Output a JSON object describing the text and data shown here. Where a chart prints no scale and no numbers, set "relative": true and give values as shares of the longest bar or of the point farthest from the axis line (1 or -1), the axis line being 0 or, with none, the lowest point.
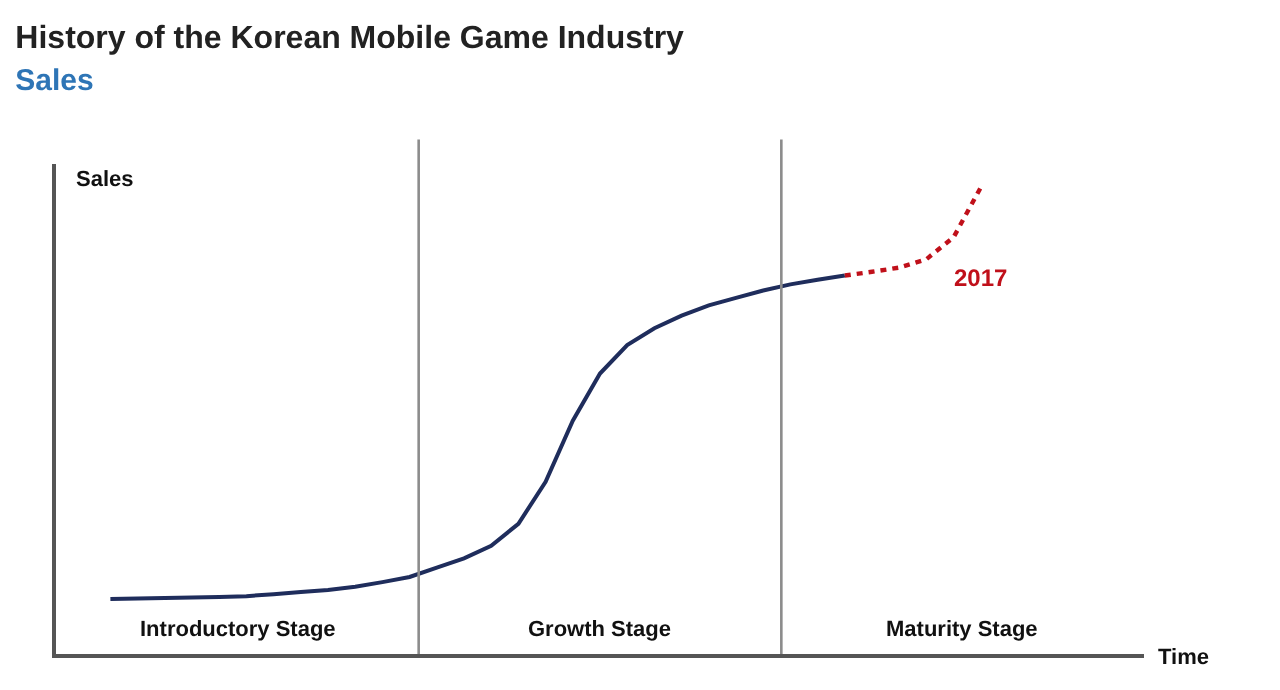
{
  "chart_data": {
    "type": "line",
    "title": "History of the Korean Mobile Game Industry",
    "subtitle": "Sales",
    "xlabel": "Time",
    "ylabel": "Sales",
    "relative": true,
    "marker": "none",
    "categories": [
      null,
      null,
      null,
      null,
      null,
      null,
      null,
      null,
      null,
      null,
      null,
      null,
      null,
      null,
      null,
      null,
      null,
      null,
      null,
      null,
      null,
      null,
      null,
      null,
      null,
      null,
      null,
      null,
      null,
      null,
      null,
      null,
      null,
      null,
      null,
      null,
      null,
      null,
      null,
      null,
      null
    ],
    "series": [
      {
        "color": "#1f2d5c",
        "line_style": "solid",
        "values": [
          null,
          null,
          0.118,
          0.119,
          0.12,
          0.121,
          0.122,
          0.124,
          0.128,
          0.133,
          0.137,
          0.144,
          0.154,
          0.165,
          0.185,
          0.205,
          0.232,
          0.279,
          0.369,
          0.5,
          0.601,
          0.662,
          0.698,
          0.725,
          0.747,
          0.763,
          0.779,
          0.792,
          0.802,
          0.811,
          null,
          null,
          null,
          null,
          null,
          null,
          null,
          null,
          null,
          null,
          null
        ]
      },
      {
        "color": "#c0101a",
        "line_style": "dotted",
        "values": [
          null,
          null,
          null,
          null,
          null,
          null,
          null,
          null,
          null,
          null,
          null,
          null,
          null,
          null,
          null,
          null,
          null,
          null,
          null,
          null,
          null,
          null,
          null,
          null,
          null,
          null,
          null,
          null,
          null,
          0.811,
          0.819,
          0.828,
          0.846,
          0.893,
          1.0,
          null,
          null,
          null,
          null,
          null,
          null
        ]
      }
    ],
    "annotations": [
      "2017",
      "Introductory Stage",
      "Growth Stage",
      "Maturity Stage"
    ]
  }
}
